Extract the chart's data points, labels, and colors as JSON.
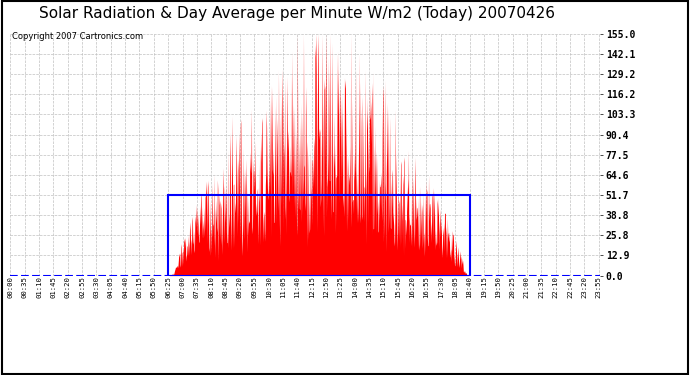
{
  "title": "Solar Radiation & Day Average per Minute W/m2 (Today) 20070426",
  "copyright": "Copyright 2007 Cartronics.com",
  "ymax": 155.0,
  "yticks": [
    0.0,
    12.9,
    25.8,
    38.8,
    51.7,
    64.6,
    77.5,
    90.4,
    103.3,
    116.2,
    129.2,
    142.1,
    155.0
  ],
  "day_average": 51.7,
  "sunrise_min": 385,
  "sunset_min": 1120,
  "bg_color": "#ffffff",
  "bar_color": "#ff0000",
  "avg_box_color": "#0000ff",
  "grid_color": "#c0c0c0",
  "title_fontsize": 11,
  "copyright_fontsize": 6,
  "n_points": 1440,
  "label_step": 35,
  "label_color": "#000000"
}
